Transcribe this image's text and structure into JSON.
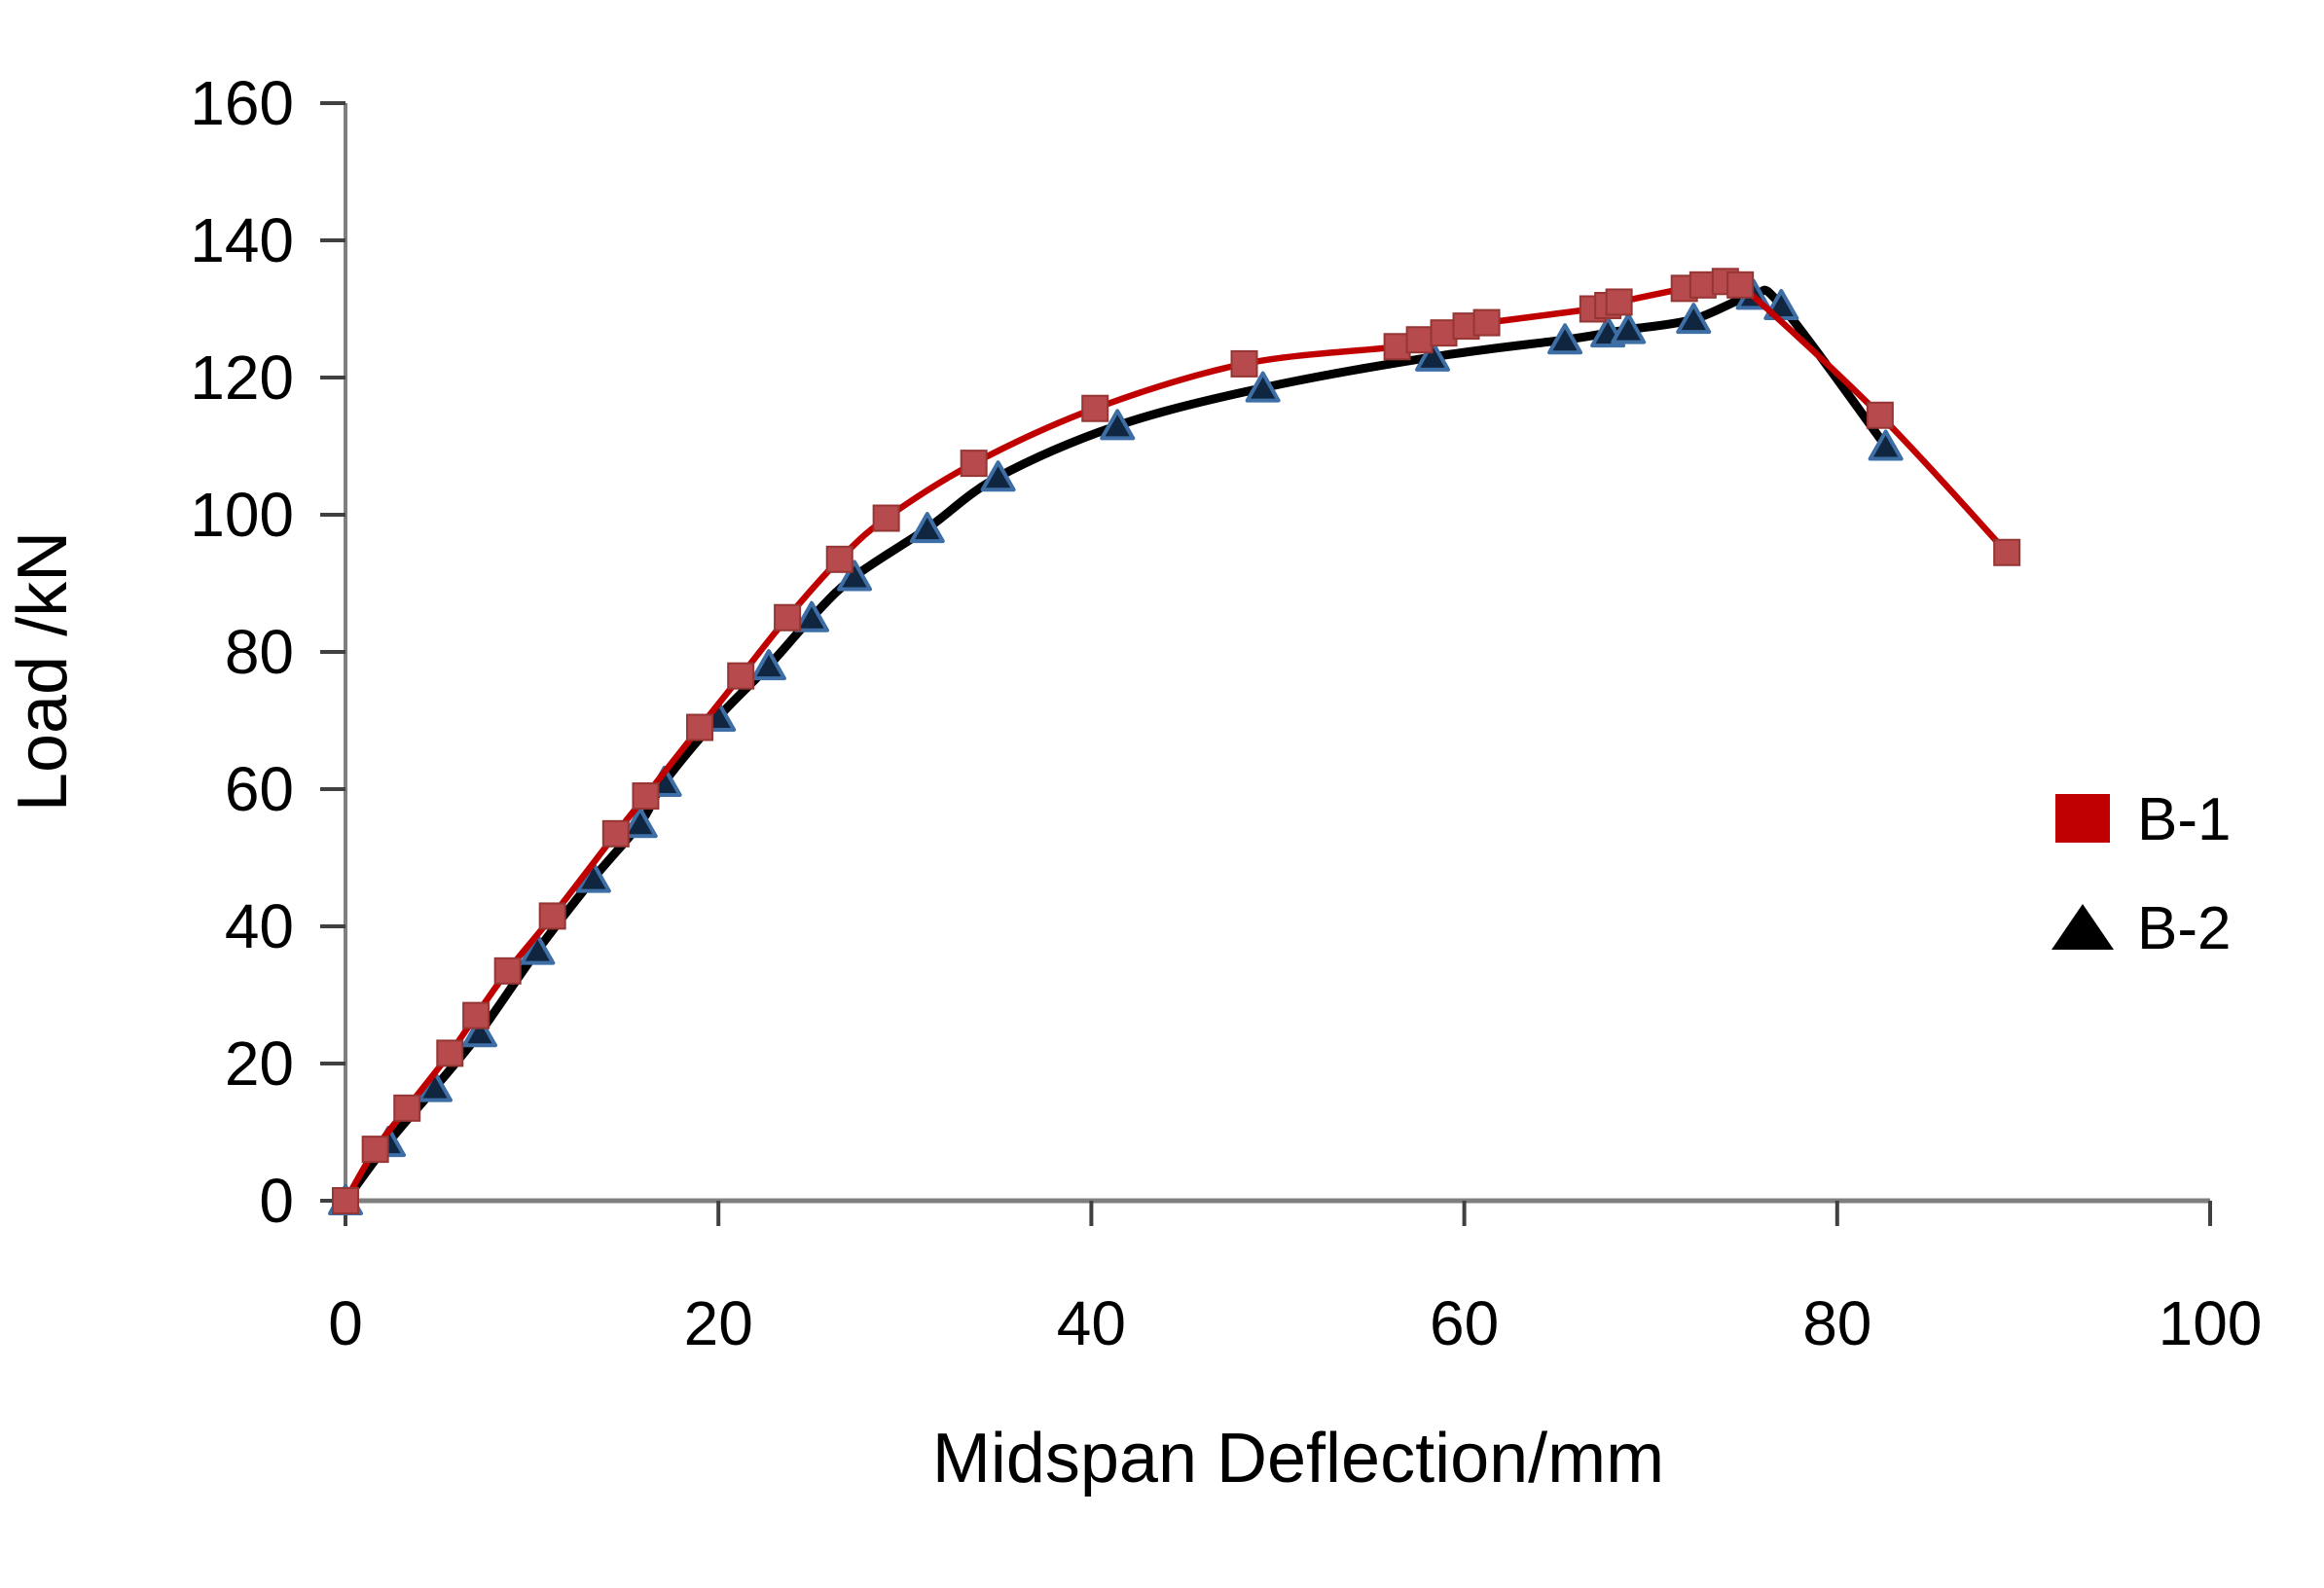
{
  "figure": {
    "background_color": "#ffffff",
    "axis_line_color": "#7f7f7f",
    "tick_color": "#404040",
    "text_color": "#000000"
  },
  "chart_data": {
    "type": "line",
    "title": "",
    "xlabel": "Midspan Deflection/mm",
    "ylabel": "Load /kN",
    "xlim": [
      0,
      100
    ],
    "ylim": [
      0,
      160
    ],
    "xticks": [
      0,
      20,
      40,
      60,
      80,
      100
    ],
    "yticks": [
      0,
      20,
      40,
      60,
      80,
      100,
      120,
      140,
      160
    ],
    "grid": false,
    "smooth_lines": true,
    "legend": {
      "position": "right-middle",
      "entries": [
        {
          "label": "B-1",
          "text_color": "#C00000",
          "marker": "square",
          "marker_color": "#C00000"
        },
        {
          "label": "B-2",
          "text_color": "#000000",
          "marker": "triangle",
          "marker_color": "#000000"
        }
      ]
    },
    "series": [
      {
        "name": "B-1",
        "line_color": "#C00000",
        "line_width": 6.5,
        "marker": "square",
        "marker_fill": "#B64A4C",
        "marker_stroke": "#963634",
        "points": [
          [
            0,
            0
          ],
          [
            1.6,
            7.5
          ],
          [
            3.3,
            13.5
          ],
          [
            5.6,
            21.5
          ],
          [
            7,
            27
          ],
          [
            8.7,
            33.5
          ],
          [
            11.1,
            41.5
          ],
          [
            14.5,
            53.5
          ],
          [
            16.1,
            59
          ],
          [
            19,
            69
          ],
          [
            21.2,
            76.5
          ],
          [
            23.7,
            85
          ],
          [
            26.5,
            93.5
          ],
          [
            29,
            99.5
          ],
          [
            33.7,
            107.5
          ],
          [
            40.2,
            115.5
          ],
          [
            48.2,
            122
          ],
          [
            56.4,
            124.5
          ],
          [
            57.6,
            125.5
          ],
          [
            58.9,
            126.5
          ],
          [
            60.1,
            127.5
          ],
          [
            61.2,
            128
          ],
          [
            66.9,
            130
          ],
          [
            67.7,
            130.5
          ],
          [
            68.3,
            131
          ],
          [
            71.8,
            133
          ],
          [
            72.8,
            133.5
          ],
          [
            74,
            134
          ],
          [
            74.8,
            133.5
          ],
          [
            82.3,
            114.5
          ],
          [
            89.1,
            94.5
          ]
        ]
      },
      {
        "name": "B-2",
        "line_color": "#000000",
        "line_width": 9,
        "marker": "triangle",
        "marker_fill": "#10253F",
        "marker_stroke": "#3D6EA5",
        "points": [
          [
            0,
            0
          ],
          [
            2.3,
            8.5
          ],
          [
            4.8,
            16.5
          ],
          [
            7.2,
            24.5
          ],
          [
            10.3,
            36.5
          ],
          [
            13.3,
            47
          ],
          [
            15.8,
            55
          ],
          [
            17.1,
            61
          ],
          [
            20,
            70.5
          ],
          [
            22.7,
            78
          ],
          [
            25,
            85
          ],
          [
            27.3,
            91
          ],
          [
            31.2,
            98
          ],
          [
            35,
            105.5
          ],
          [
            41.4,
            113
          ],
          [
            49.2,
            118.5
          ],
          [
            58.3,
            123
          ],
          [
            65.4,
            125.5
          ],
          [
            67.7,
            126.5
          ],
          [
            68.8,
            127
          ],
          [
            72.3,
            128.5
          ],
          [
            75.5,
            132
          ],
          [
            77,
            130.5
          ],
          [
            82.6,
            110
          ]
        ]
      }
    ]
  }
}
